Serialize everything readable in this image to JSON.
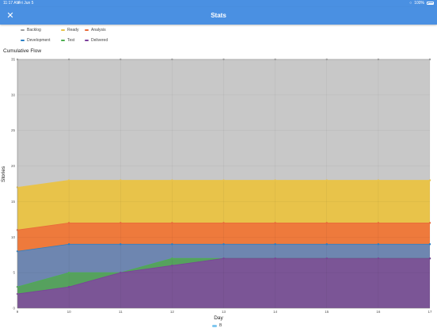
{
  "status_bar": {
    "time": "11:17 AM",
    "date": "Fri Jun 5",
    "battery": "100%"
  },
  "nav": {
    "title": "Stats",
    "close_icon": "close-icon"
  },
  "legend": [
    {
      "label": "Backlog",
      "color": "#9e9e9e"
    },
    {
      "label": "Ready",
      "color": "#e8c34a"
    },
    {
      "label": "Analysis",
      "color": "#e86a3a"
    },
    {
      "label": "Development",
      "color": "#2a7fc4"
    },
    {
      "label": "Test",
      "color": "#4caf50"
    },
    {
      "label": "Delivered",
      "color": "#7b3f9b"
    }
  ],
  "bottom_legend": {
    "label": "B",
    "color": "#7fc7ef"
  },
  "chart_data": {
    "type": "area",
    "title": "Cumulative Flow",
    "xlabel": "Day",
    "ylabel": "Stories",
    "x": [
      9,
      10,
      11,
      12,
      13,
      14,
      15,
      16,
      17
    ],
    "xlim": [
      9,
      17
    ],
    "ylim": [
      0,
      35
    ],
    "yticks": [
      0,
      5,
      10,
      15,
      20,
      25,
      30,
      35
    ],
    "grid": true,
    "stacked_cumulative": true,
    "series": [
      {
        "name": "Backlog",
        "color": "#c8c8c8",
        "line": "#9e9e9e",
        "values": [
          35,
          35,
          35,
          35,
          35,
          35,
          35,
          35,
          35
        ]
      },
      {
        "name": "Ready",
        "color": "#e8c34a",
        "line": "#e8c34a",
        "values": [
          17,
          18,
          18,
          18,
          18,
          18,
          18,
          18,
          18
        ]
      },
      {
        "name": "Analysis",
        "color": "#ee7a3c",
        "line": "#e86a3a",
        "values": [
          11,
          12,
          12,
          12,
          12,
          12,
          12,
          12,
          12
        ]
      },
      {
        "name": "Development",
        "color": "#6e86b0",
        "line": "#2a7fc4",
        "values": [
          8,
          9,
          9,
          9,
          9,
          9,
          9,
          9,
          9
        ]
      },
      {
        "name": "Test",
        "color": "#56a15e",
        "line": "#4caf50",
        "values": [
          3,
          5,
          5,
          7,
          7,
          7,
          7,
          7,
          7
        ]
      },
      {
        "name": "Delivered",
        "color": "#7b5596",
        "line": "#7b3f9b",
        "values": [
          2,
          3,
          5,
          6,
          7,
          7,
          7,
          7,
          7
        ]
      }
    ]
  }
}
